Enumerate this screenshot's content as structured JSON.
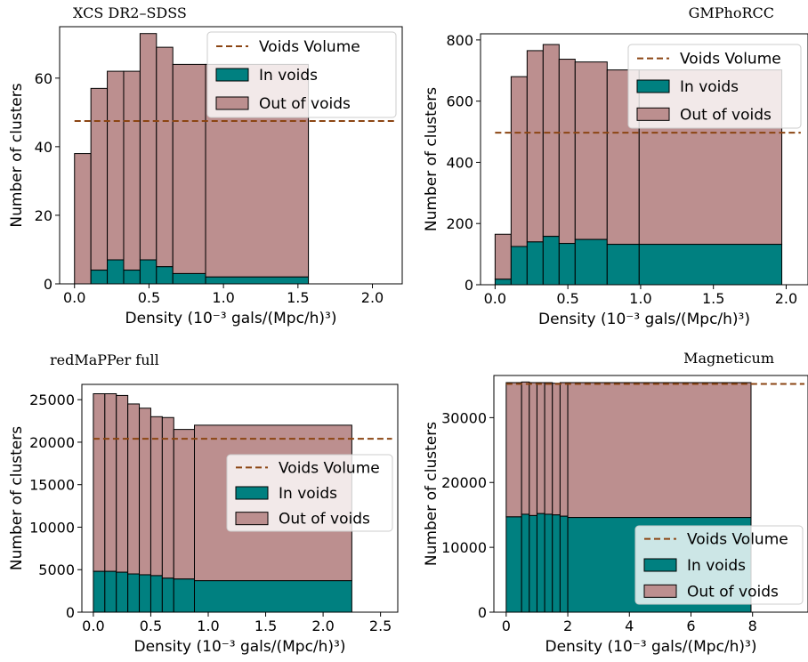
{
  "colors": {
    "in_voids": "#008080",
    "out_of_voids": "#bc8f8f",
    "voids_volume": "#8b4513",
    "edge": "#000000"
  },
  "chart_data": [
    {
      "type": "bar",
      "title": "XCS DR2–SDSS",
      "xlabel": "Density (10⁻³ gals/(Mpc/h)³)",
      "ylabel": "Number of clusters",
      "xlim": [
        -0.1,
        2.2
      ],
      "ylim": [
        0,
        75
      ],
      "xticks": [
        0.0,
        0.5,
        1.0,
        1.5,
        2.0
      ],
      "xtick_labels": [
        "0.0",
        "0.5",
        "1.0",
        "1.5",
        "2.0"
      ],
      "yticks": [
        0,
        20,
        40,
        60
      ],
      "ytick_labels": [
        "0",
        "20",
        "40",
        "60"
      ],
      "bin_edges": [
        0.0,
        0.11,
        0.22,
        0.33,
        0.44,
        0.55,
        0.66,
        0.88,
        1.57
      ],
      "series": [
        {
          "name": "In voids",
          "values": [
            0,
            4,
            7,
            4,
            7,
            5,
            3,
            4
          ]
        },
        {
          "name": "Out of voids",
          "values": [
            38,
            53,
            55,
            58,
            66,
            64,
            61,
            58
          ]
        }
      ],
      "extra_bar": {
        "x0": 0.88,
        "x1": 1.57,
        "in": 2,
        "out": 62
      },
      "reference_line": {
        "name": "Voids Volume",
        "value": 47.5,
        "x_range": [
          0.0,
          2.15
        ]
      },
      "legend": {
        "placement": "top-right",
        "items": [
          "Voids Volume",
          "In voids",
          "Out of voids"
        ]
      }
    },
    {
      "type": "bar",
      "title": "GMPhoRCC",
      "xlabel": "Density (10⁻³ gals/(Mpc/h)³)",
      "ylabel": "Number of clusters",
      "xlim": [
        -0.1,
        2.15
      ],
      "ylim": [
        0,
        820
      ],
      "xticks": [
        0.0,
        0.5,
        1.0,
        1.5,
        2.0
      ],
      "xtick_labels": [
        "0.0",
        "0.5",
        "1.0",
        "1.5",
        "2.0"
      ],
      "yticks": [
        0,
        200,
        400,
        600,
        800
      ],
      "ytick_labels": [
        "0",
        "200",
        "400",
        "600",
        "800"
      ],
      "bin_edges": [
        0.0,
        0.11,
        0.22,
        0.33,
        0.44,
        0.55,
        0.77,
        0.99,
        1.97
      ],
      "series": [
        {
          "name": "In voids",
          "values": [
            18,
            125,
            140,
            158,
            135,
            148,
            132,
            132
          ]
        },
        {
          "name": "Out of voids",
          "values": [
            147,
            555,
            625,
            627,
            602,
            580,
            570,
            570
          ]
        }
      ],
      "reference_line": {
        "name": "Voids Volume",
        "value": 497,
        "x_range": [
          0.0,
          2.1
        ]
      },
      "legend": {
        "placement": "top-right",
        "items": [
          "Voids Volume",
          "In voids",
          "Out of voids"
        ]
      }
    },
    {
      "type": "bar",
      "title": "redMaPPer full",
      "xlabel": "Density (10⁻³ gals/(Mpc/h)³)",
      "ylabel": "Number of clusters",
      "xlim": [
        -0.1,
        2.65
      ],
      "ylim": [
        0,
        26800
      ],
      "xticks": [
        0.0,
        0.5,
        1.0,
        1.5,
        2.0,
        2.5
      ],
      "xtick_labels": [
        "0.0",
        "0.5",
        "1.0",
        "1.5",
        "2.0",
        "2.5"
      ],
      "yticks": [
        0,
        5000,
        10000,
        15000,
        20000,
        25000
      ],
      "ytick_labels": [
        "0",
        "5000",
        "10000",
        "15000",
        "20000",
        "25000"
      ],
      "bin_edges": [
        0.0,
        0.1,
        0.2,
        0.3,
        0.4,
        0.5,
        0.6,
        0.7,
        0.88,
        2.25
      ],
      "series": [
        {
          "name": "In voids",
          "values": [
            4800,
            4800,
            4700,
            4500,
            4400,
            4300,
            4000,
            3900,
            3700
          ]
        },
        {
          "name": "Out of voids",
          "values": [
            20900,
            20900,
            20800,
            20000,
            19600,
            18700,
            18900,
            17600,
            18300
          ]
        }
      ],
      "reference_line": {
        "name": "Voids Volume",
        "value": 20400,
        "x_range": [
          0.0,
          2.6
        ]
      },
      "legend": {
        "placement": "center-right",
        "items": [
          "Voids Volume",
          "In voids",
          "Out of voids"
        ]
      }
    },
    {
      "type": "bar",
      "title": "Magneticum",
      "xlabel": "Density (10⁻³ gals/(Mpc/h)³)",
      "ylabel": "Number of clusters",
      "xlim": [
        -0.4,
        9.8
      ],
      "ylim": [
        0,
        36500
      ],
      "xticks": [
        0,
        2,
        4,
        6,
        8
      ],
      "xtick_labels": [
        "0",
        "2",
        "4",
        "6",
        "8"
      ],
      "yticks": [
        0,
        10000,
        20000,
        30000
      ],
      "ytick_labels": [
        "0",
        "10000",
        "20000",
        "30000"
      ],
      "bin_edges": [
        0.0,
        0.5,
        0.75,
        1.0,
        1.25,
        1.5,
        1.75,
        2.0,
        7.95
      ],
      "series": [
        {
          "name": "In voids",
          "values": [
            14700,
            15100,
            14900,
            15200,
            15100,
            15000,
            14800,
            14600
          ]
        },
        {
          "name": "Out of voids",
          "values": [
            20700,
            20400,
            20500,
            20200,
            20300,
            20300,
            20600,
            20800
          ]
        }
      ],
      "reference_line": {
        "name": "Voids Volume",
        "value": 35200,
        "x_range": [
          0.0,
          9.7
        ]
      },
      "legend": {
        "placement": "bottom-right",
        "items": [
          "Voids Volume",
          "In voids",
          "Out of voids"
        ]
      }
    }
  ]
}
